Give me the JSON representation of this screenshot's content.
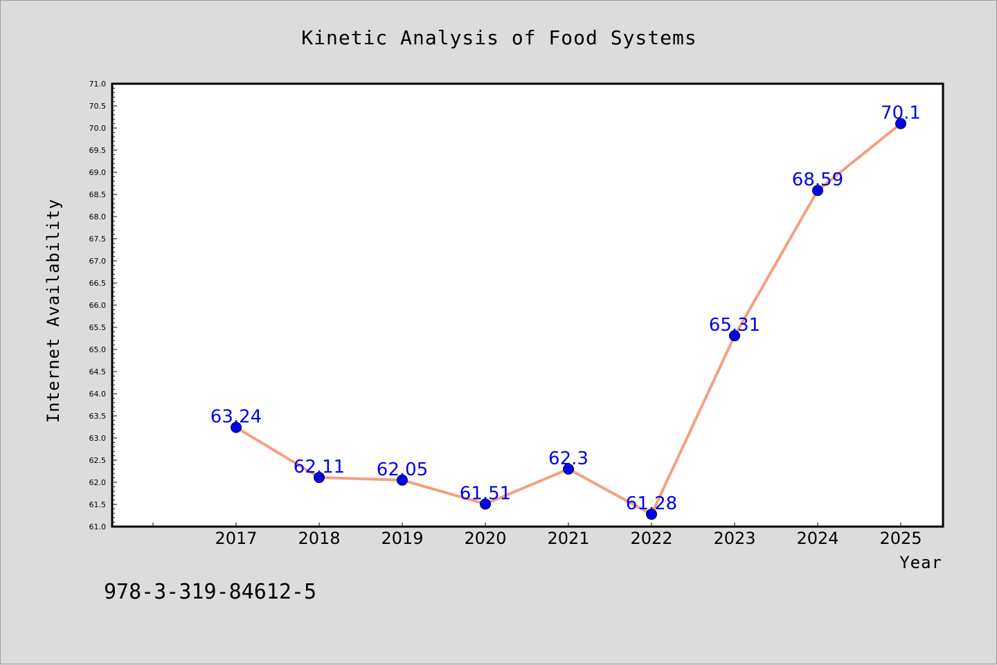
{
  "chart_data": {
    "type": "line",
    "title": "Kinetic Analysis of Food Systems",
    "xlabel": "Year",
    "ylabel": "Internet Availability",
    "x": [
      "2017",
      "2018",
      "2019",
      "2020",
      "2021",
      "2022",
      "2023",
      "2024",
      "2025"
    ],
    "series": [
      {
        "values": [
          63.24,
          62.11,
          62.05,
          61.51,
          62.3,
          61.28,
          65.31,
          68.59,
          70.1
        ],
        "data_labels": [
          "63.24",
          "62.11",
          "62.05",
          "61.51",
          "62.3",
          "61.28",
          "65.31",
          "68.59",
          "70.1"
        ]
      }
    ],
    "ylim": [
      61.0,
      71.0
    ],
    "yticks": [
      "61.0",
      "61.5",
      "62.0",
      "62.5",
      "63.0",
      "63.5",
      "64.0",
      "64.5",
      "65.0",
      "65.5",
      "66.0",
      "66.5",
      "67.0",
      "67.5",
      "68.0",
      "68.5",
      "69.0",
      "69.5",
      "70.0",
      "70.5",
      "71.0"
    ],
    "grid": false,
    "legend": "none",
    "line_color": "#f4a07c",
    "marker_color": "#0000ee",
    "label_color": "#0000ee"
  },
  "footer": {
    "text": "978-3-319-84612-5"
  },
  "colors": {
    "background": "#dcdcdc",
    "plot_background": "#ffffff",
    "axis": "#000000"
  }
}
